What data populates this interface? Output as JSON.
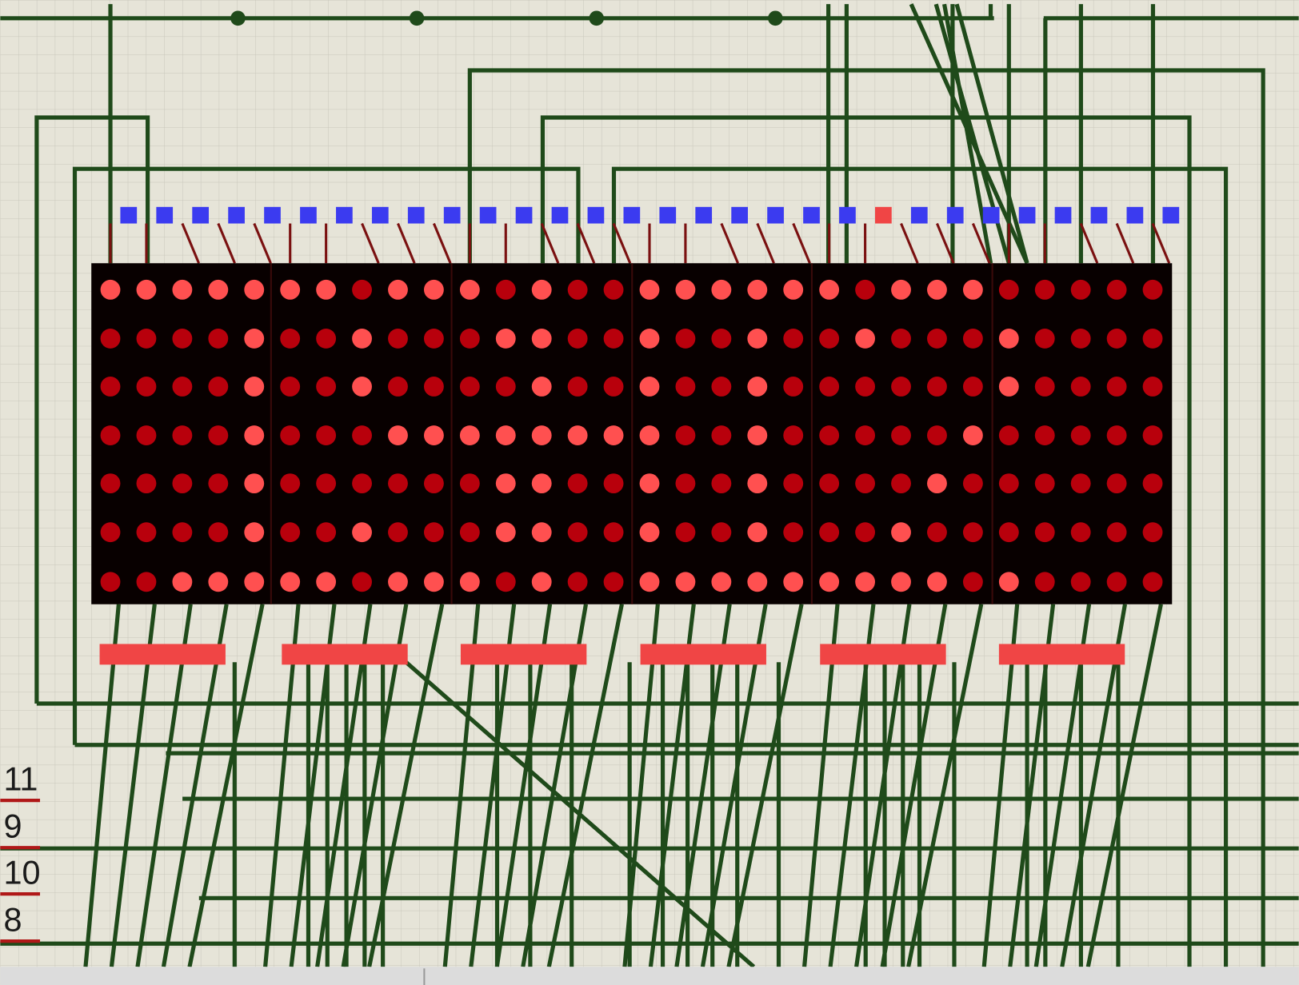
{
  "net_labels": [
    "11",
    "9",
    "10",
    "8"
  ]
}
